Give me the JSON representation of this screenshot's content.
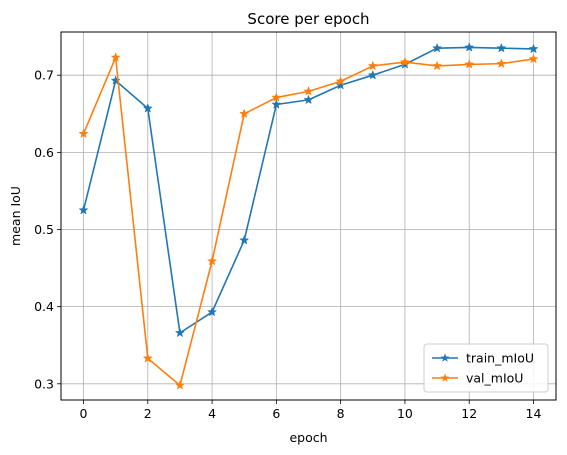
{
  "chart_data": {
    "type": "line",
    "title": "Score per epoch",
    "xlabel": "epoch",
    "ylabel": "mean IoU",
    "x": [
      0,
      1,
      2,
      3,
      4,
      5,
      6,
      7,
      8,
      9,
      10,
      11,
      12,
      13,
      14
    ],
    "series": [
      {
        "name": "train_mIoU",
        "color": "#1f77b4",
        "marker": "star",
        "values": [
          0.525,
          0.693,
          0.657,
          0.366,
          0.393,
          0.486,
          0.662,
          0.668,
          0.687,
          0.7,
          0.714,
          0.735,
          0.736,
          0.735,
          0.734
        ]
      },
      {
        "name": "val_mIoU",
        "color": "#ff7f0e",
        "marker": "star",
        "values": [
          0.624,
          0.723,
          0.333,
          0.298,
          0.459,
          0.65,
          0.671,
          0.679,
          0.692,
          0.712,
          0.717,
          0.712,
          0.714,
          0.715,
          0.721
        ]
      }
    ],
    "xlim": [
      -0.7,
      14.7
    ],
    "ylim": [
      0.279,
      0.756
    ],
    "xticks": [
      0,
      2,
      4,
      6,
      8,
      10,
      12,
      14
    ],
    "xtick_labels": [
      "0",
      "2",
      "4",
      "6",
      "8",
      "10",
      "12",
      "14"
    ],
    "yticks": [
      0.3,
      0.4,
      0.5,
      0.6,
      0.7
    ],
    "ytick_labels": [
      "0.3",
      "0.4",
      "0.5",
      "0.6",
      "0.7"
    ],
    "grid": true,
    "legend_position": "lower-right"
  }
}
